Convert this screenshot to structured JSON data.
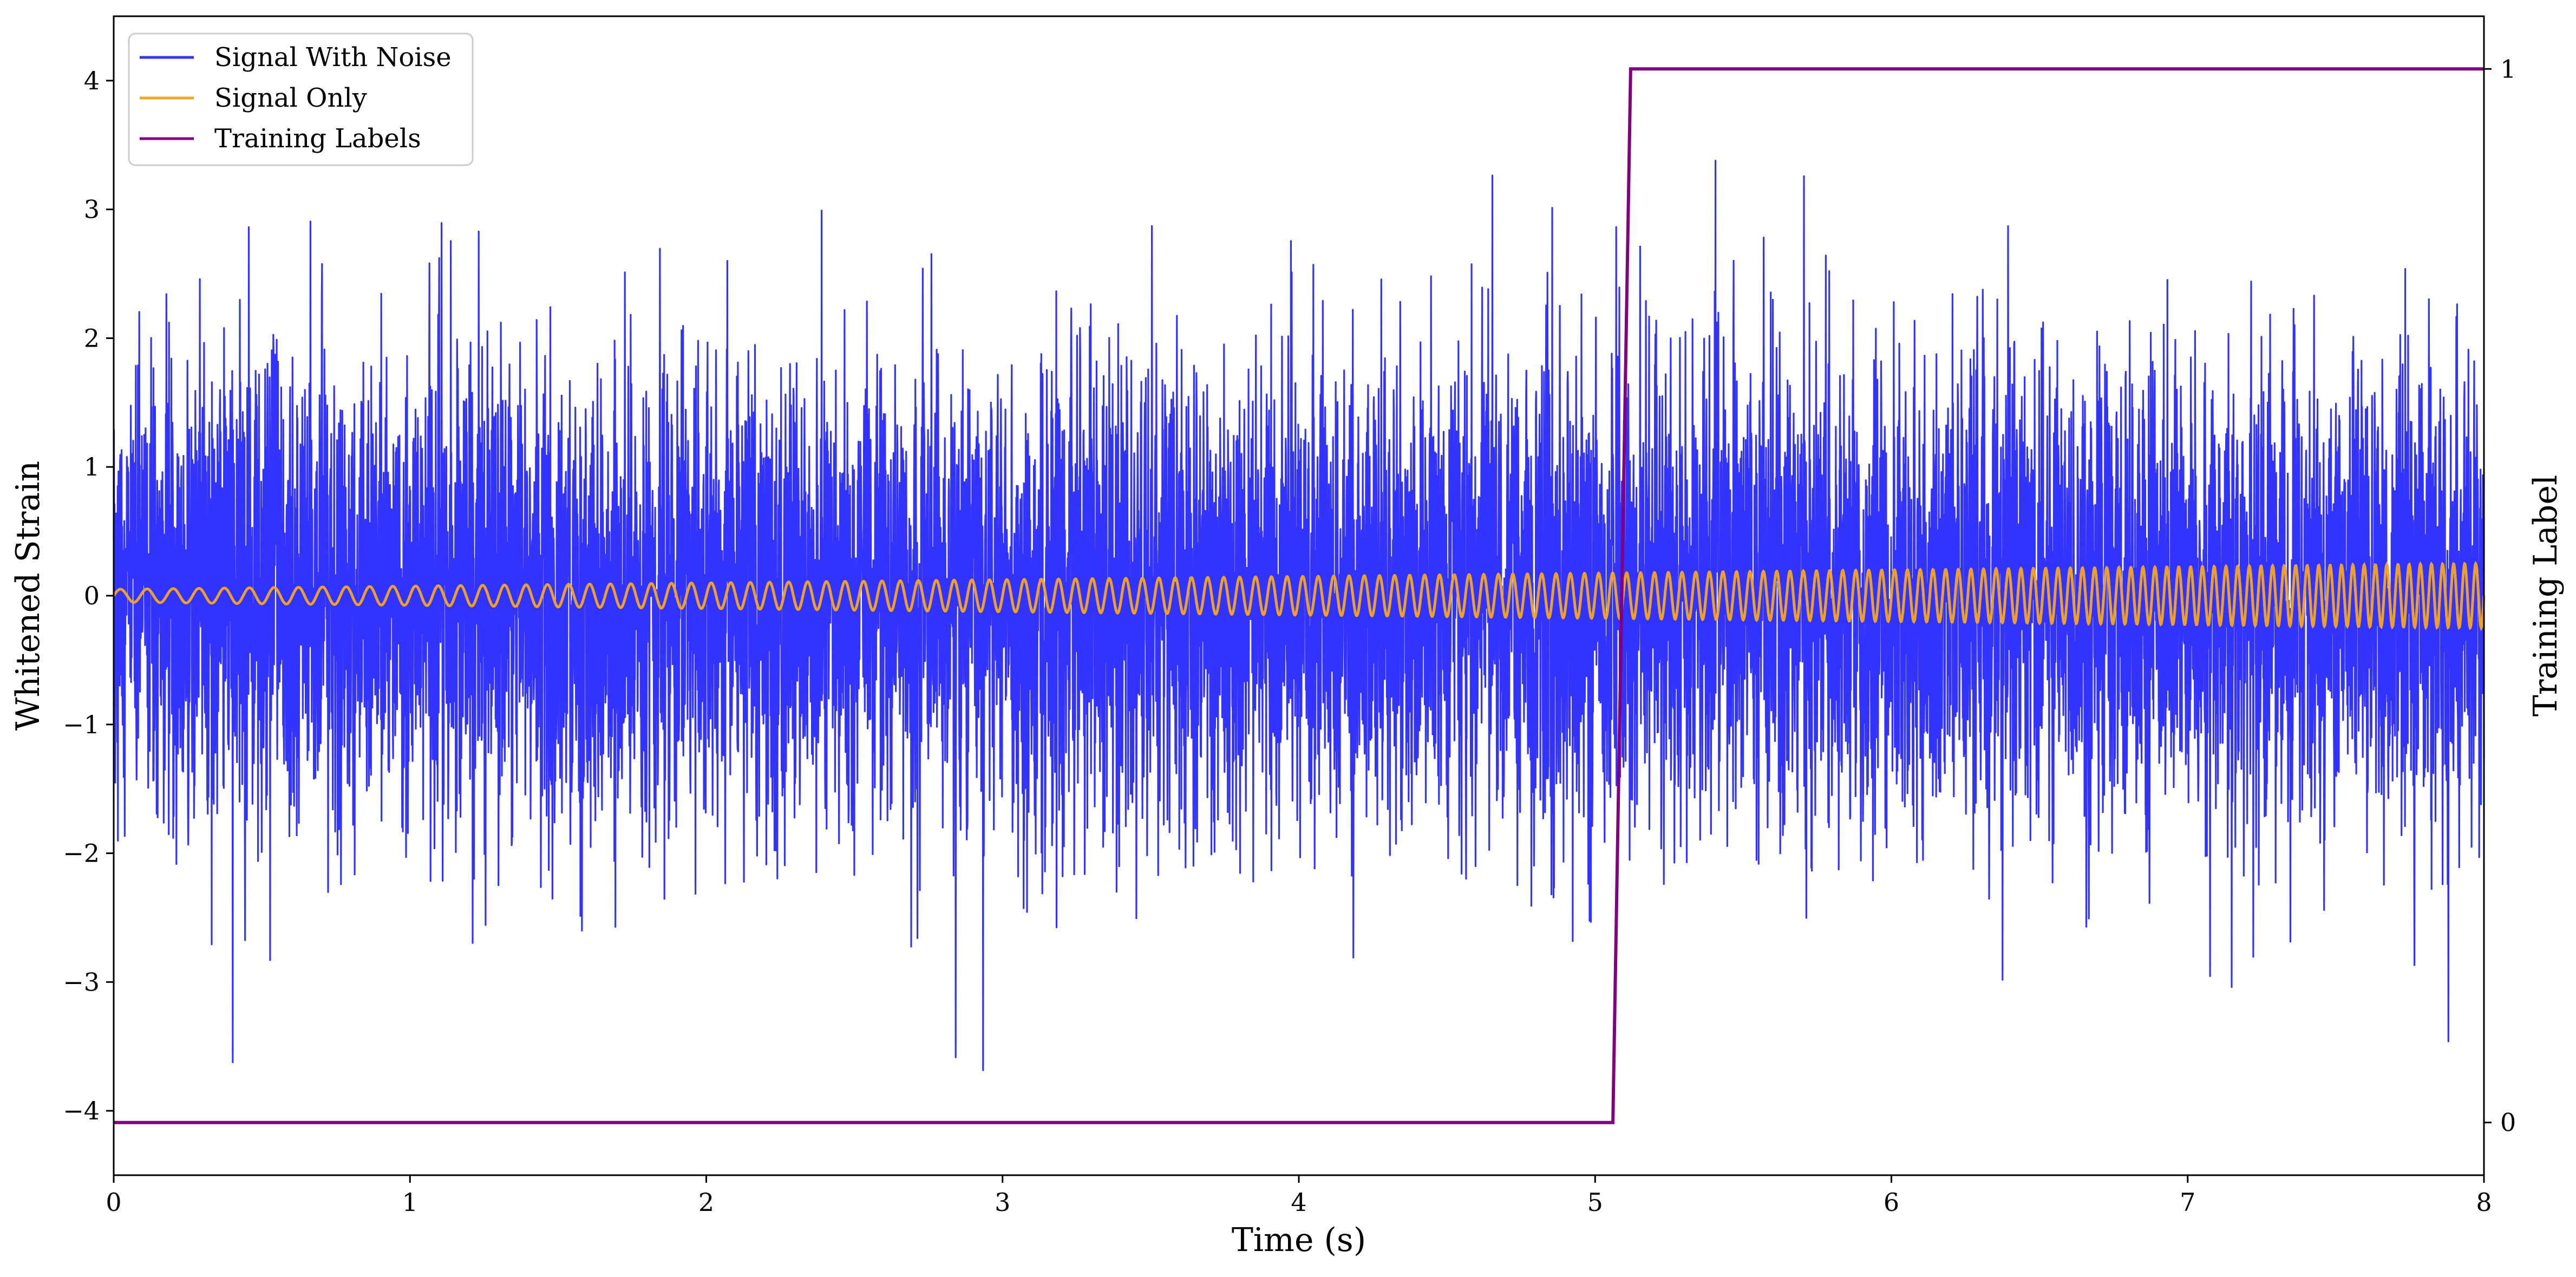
{
  "chart_data": {
    "type": "line",
    "title": "",
    "xlabel": "Time (s)",
    "ylabel": "Whitened Strain",
    "y2label": "Training Label",
    "xlim": [
      0,
      8
    ],
    "ylim": [
      -4.5,
      4.5
    ],
    "y2lim": [
      -0.05,
      1.05
    ],
    "grid": false,
    "legend_position": "top-left",
    "x_ticks": [
      0,
      1,
      2,
      3,
      4,
      5,
      6,
      7,
      8
    ],
    "x_tick_labels": [
      "0",
      "1",
      "2",
      "3",
      "4",
      "5",
      "6",
      "7",
      "8"
    ],
    "y_ticks": [
      -4,
      -3,
      -2,
      -1,
      0,
      1,
      2,
      3,
      4
    ],
    "y_tick_labels": [
      "−4",
      "−3",
      "−2",
      "−1",
      "0",
      "1",
      "2",
      "3",
      "4"
    ],
    "y2_ticks": [
      0,
      1
    ],
    "y2_tick_labels": [
      "0",
      "1"
    ],
    "series": [
      {
        "name": "Signal With Noise",
        "color": "#3333ff",
        "axis": "left",
        "kind": "noise",
        "approx_std": 0.9,
        "approx_min": -3.85,
        "approx_max": 3.75
      },
      {
        "name": "Signal Only",
        "color": "#f5a623",
        "axis": "left",
        "kind": "chirp",
        "start_amplitude": 0.05,
        "end_amplitude": 0.25,
        "start_frequency_hz": 11,
        "end_frequency_hz": 27
      },
      {
        "name": "Training Labels",
        "color": "#800080",
        "axis": "right",
        "kind": "step",
        "x": [
          0,
          5.06,
          5.12,
          8
        ],
        "y": [
          0,
          0,
          1,
          1
        ]
      }
    ]
  }
}
